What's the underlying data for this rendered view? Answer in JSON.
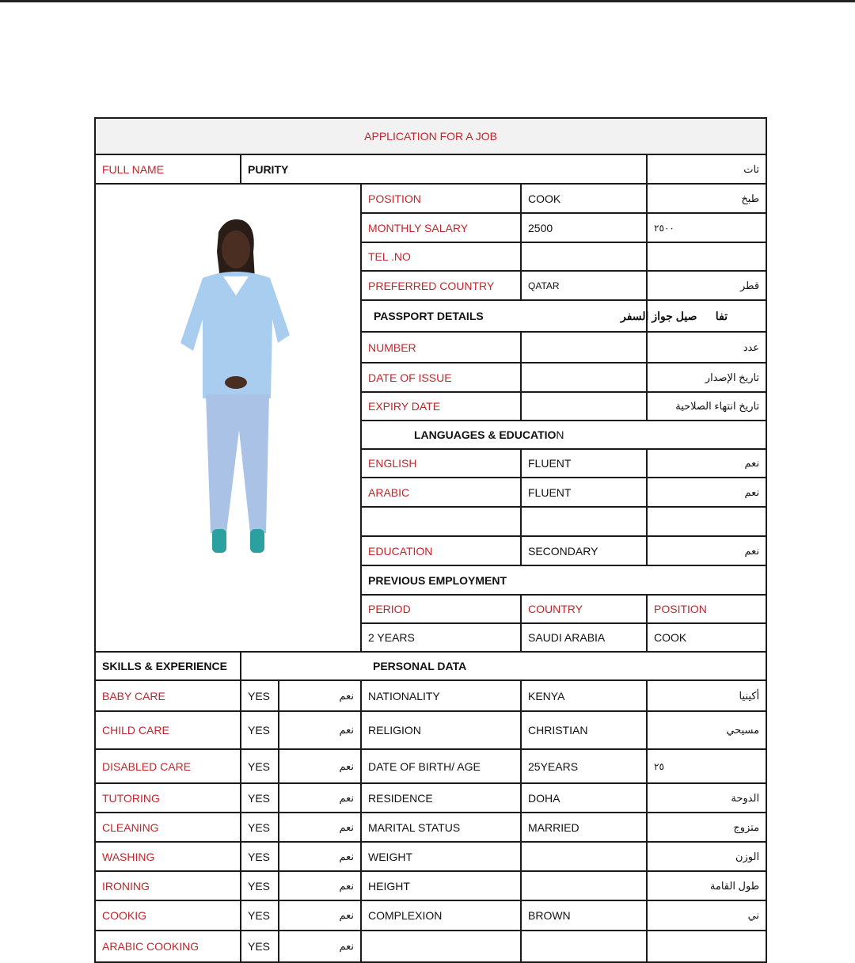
{
  "title": "APPLICATION FOR A JOB",
  "full_name": {
    "label": "FULL NAME",
    "value": "PURITY",
    "ar": "تات"
  },
  "job": [
    {
      "label": "POSITION",
      "value": "COOK",
      "ar": "طبخ"
    },
    {
      "label": "MONTHLY SALARY",
      "value": "2500",
      "ar": "٢٥٠٠"
    },
    {
      "label": "TEL .NO",
      "value": "",
      "ar": ""
    },
    {
      "label": "PREFERRED COUNTRY",
      "value": "QATAR",
      "ar": "قطر"
    }
  ],
  "passport": {
    "heading": "PASSPORT DETAILS",
    "heading_ar": "تفا      صيل جواز السفر",
    "rows": [
      {
        "label": "NUMBER",
        "value": "",
        "ar": "عدد"
      },
      {
        "label": "DATE OF ISSUE",
        "value": "",
        "ar": "تاريخ الإصدار"
      },
      {
        "label": "EXPIRY DATE",
        "value": "",
        "ar": "تاريخ انتهاء الصلاحية"
      }
    ]
  },
  "languages": {
    "heading": "LANGUAGES & EDUCATIO",
    "heading_tail": "N",
    "rows": [
      {
        "label": "ENGLISH",
        "value": "FLUENT",
        "ar": "نعم"
      },
      {
        "label": "ARABIC",
        "value": "FLUENT",
        "ar": "نعم"
      },
      {
        "label": "",
        "value": "",
        "ar": ""
      },
      {
        "label": "EDUCATION",
        "value": "SECONDARY",
        "ar": "نعم"
      }
    ]
  },
  "previous": {
    "heading": "PREVIOUS EMPLOYMENT",
    "cols": [
      "PERIOD",
      "COUNTRY",
      "POSITION"
    ],
    "row": [
      "2 YEARS",
      "SAUDI ARABIA",
      "COOK"
    ]
  },
  "skills_heading": "SKILLS & EXPERIENCE",
  "personal_heading": "PERSONAL DATA",
  "rows": [
    {
      "skill": "BABY CARE",
      "yes": "YES",
      "ar": "نعم",
      "field": "NATIONALITY",
      "value": "KENYA",
      "far": "أكينيا"
    },
    {
      "skill": "CHILD CARE",
      "yes": "YES",
      "ar": "نعم",
      "field": "RELIGION",
      "value": "CHRISTIAN",
      "far": "مسيحي"
    },
    {
      "skill": "DISABLED CARE",
      "yes": "YES",
      "ar": "نعم",
      "field": "DATE OF BIRTH/ AGE",
      "value": "25YEARS",
      "far": "٢٥"
    },
    {
      "skill": "TUTORING",
      "yes": "YES",
      "ar": "نعم",
      "field": "RESIDENCE",
      "value": "DOHA",
      "far": "الدوحة"
    },
    {
      "skill": "CLEANING",
      "yes": "YES",
      "ar": "نعم",
      "field": "MARITAL STATUS",
      "value": "MARRIED",
      "far": "متزوج"
    },
    {
      "skill": "WASHING",
      "yes": "YES",
      "ar": "نعم",
      "field": "WEIGHT",
      "value": "",
      "far": "الوزن"
    },
    {
      "skill": "IRONING",
      "yes": "YES",
      "ar": "نعم",
      "field": "HEIGHT",
      "value": "",
      "far": "طول القامة"
    },
    {
      "skill": "COOKIG",
      "yes": "YES",
      "ar": "نعم",
      "field": "COMPLEXION",
      "value": "BROWN",
      "far": "ني"
    },
    {
      "skill": "ARABIC COOKING",
      "yes": "YES",
      "ar": "نعم",
      "field": "",
      "value": "",
      "far": ""
    }
  ],
  "colors": {
    "label": "#c0262c",
    "border": "#1a1a1a",
    "title_bg": "#f2f2f2"
  }
}
